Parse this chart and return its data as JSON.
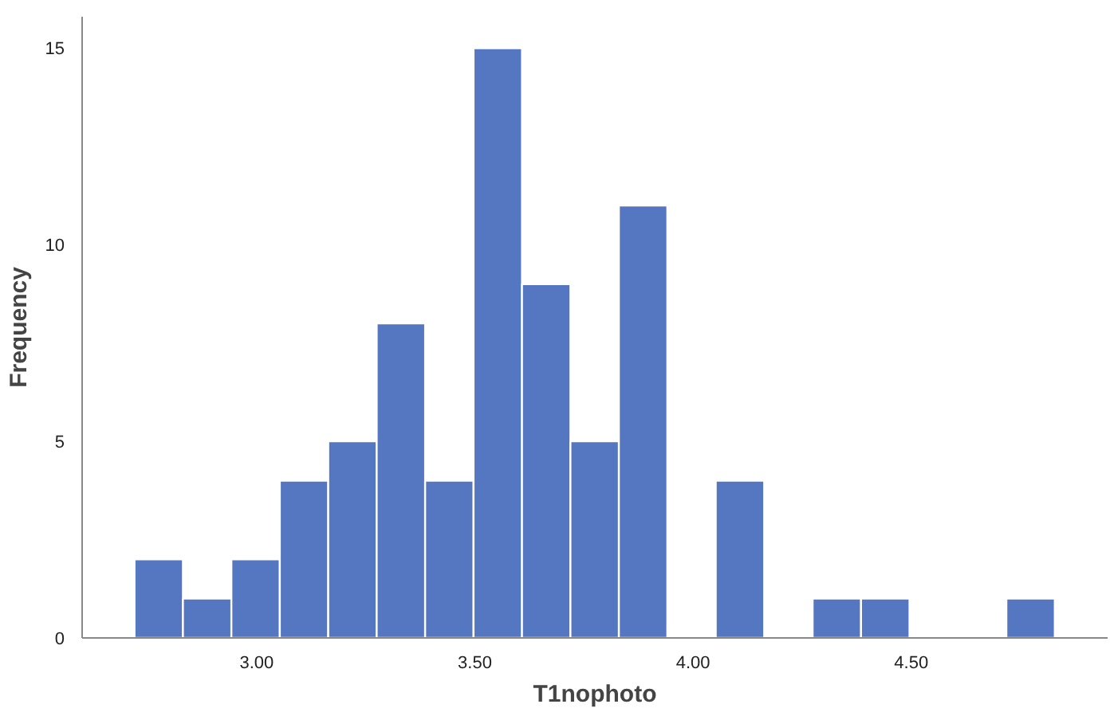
{
  "chart_data": {
    "type": "histogram",
    "xlabel": "T1nophoto",
    "ylabel": "Frequency",
    "bins": [
      2.72,
      2.831,
      2.942,
      3.053,
      3.164,
      3.275,
      3.386,
      3.497,
      3.608,
      3.719,
      3.83,
      3.941,
      4.052,
      4.163,
      4.274,
      4.385,
      4.496,
      4.607,
      4.718,
      4.829
    ],
    "values": [
      2,
      1,
      2,
      4,
      5,
      8,
      4,
      15,
      9,
      5,
      11,
      0,
      4,
      0,
      1,
      1,
      0,
      0,
      1
    ],
    "color": "#5577c1",
    "xlim": [
      2.6,
      4.95
    ],
    "ylim": [
      0,
      15.8
    ],
    "xticks": [
      {
        "value": 3,
        "label": "3.00"
      },
      {
        "value": 3.5,
        "label": "3.50"
      },
      {
        "value": 4,
        "label": "4.00"
      },
      {
        "value": 4.5,
        "label": "4.50"
      }
    ],
    "yticks": [
      0,
      5,
      10,
      15
    ],
    "grid": false
  }
}
